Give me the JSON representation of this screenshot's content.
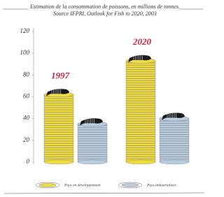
{
  "chart_data": {
    "type": "bar",
    "title": "Estimation de la consommation de poissons, en millions de tonnes.",
    "subtitle": "Source IFPRI, Outlook for Fish to 2020, 2003",
    "categories": [
      "1997",
      "2020"
    ],
    "series": [
      {
        "name": "Pays en développement",
        "color": "#f0dc3c",
        "values": [
          62,
          93
        ]
      },
      {
        "name": "Pays industrialisés",
        "color": "#b9cde2",
        "values": [
          35,
          40
        ]
      }
    ],
    "ylim": [
      0,
      120
    ],
    "yticks": [
      0,
      20,
      40,
      60,
      80,
      100,
      120
    ],
    "grid": false
  }
}
